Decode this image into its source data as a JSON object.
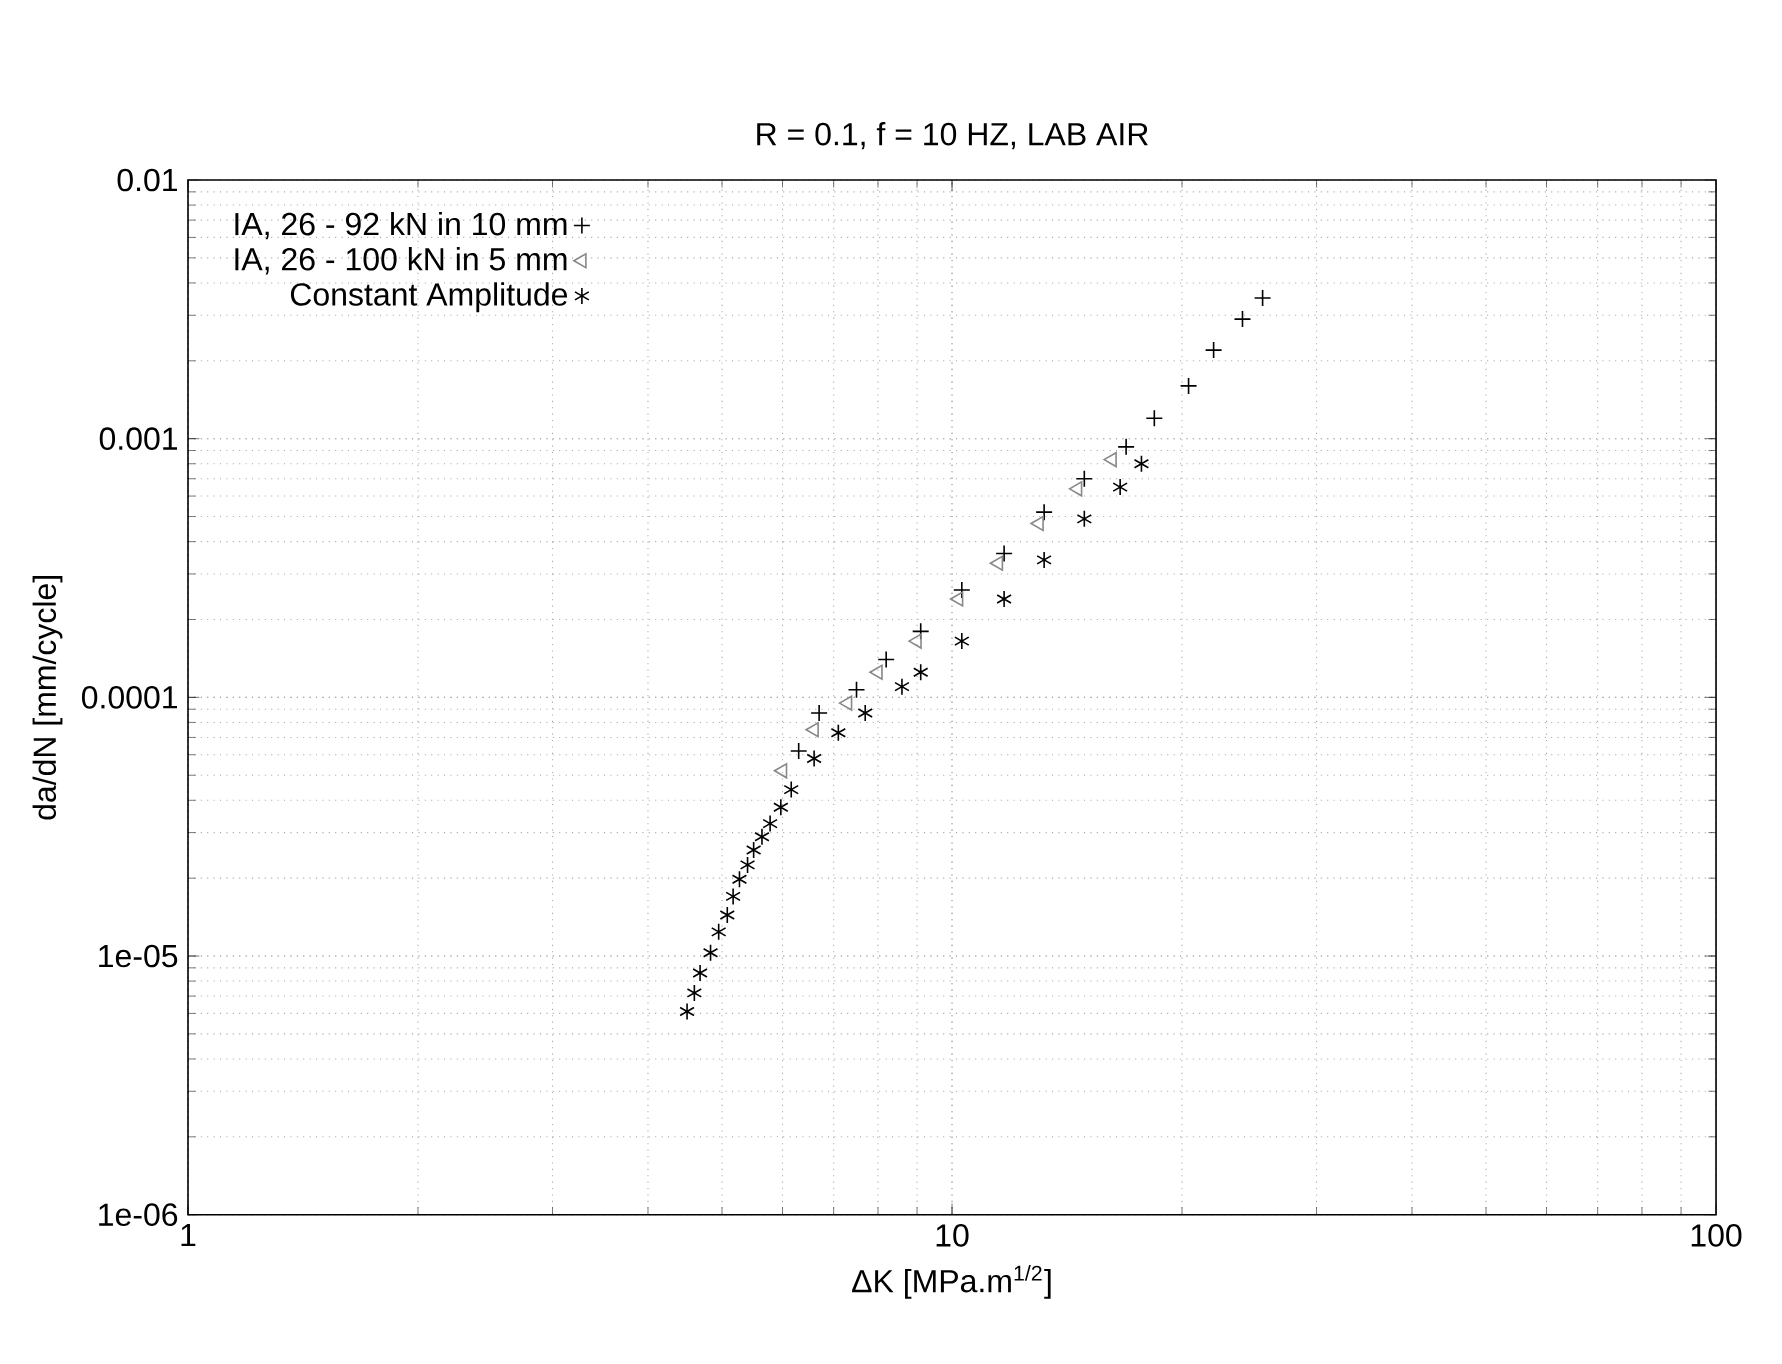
{
  "chart_data": {
    "type": "scatter",
    "title": "R = 0.1, f = 10 HZ, LAB AIR",
    "xlabel": "ΔK [MPa.m$^{1/2}$]",
    "ylabel": "da/dN [mm/cycle]",
    "log": "xy",
    "grid": true,
    "legend": "top left",
    "xlim": [
      1,
      100
    ],
    "xticks": [
      1,
      10,
      100
    ],
    "ylim": [
      1e-06,
      0.01
    ],
    "yticks": [
      {
        "value": 1e-06,
        "label": "1e-06"
      },
      {
        "value": 1e-05,
        "label": "1e-05"
      },
      {
        "value": 0.0001,
        "label": "0.0001"
      },
      0.001,
      0.01
    ],
    "series": [
      {
        "name": "IA, 26 - 92 kN in 10 mm",
        "color": "#000000",
        "marker": "cross",
        "x": [
          6.3,
          6.7,
          7.5,
          8.2,
          9.1,
          10.3,
          11.7,
          13.2,
          14.9,
          16.9,
          18.4,
          20.4,
          22,
          24,
          25.5
        ],
        "values": [
          6.2e-05,
          8.7e-05,
          0.000107,
          0.00014,
          0.00018,
          0.00026,
          0.00036,
          0.00052,
          0.0007,
          0.00093,
          0.0012,
          0.0016,
          0.0022,
          0.0029,
          0.0035
        ]
      },
      {
        "name": "IA, 26 - 100 kN in 5 mm",
        "color": "#888888",
        "marker": "triangle",
        "x": [
          6.0,
          6.6,
          7.3,
          8.0,
          9.0,
          10.2,
          11.5,
          13.0,
          14.6,
          16.2
        ],
        "values": [
          5.2e-05,
          7.5e-05,
          9.5e-05,
          0.000125,
          0.000165,
          0.00024,
          0.00033,
          0.00047,
          0.00064,
          0.00083
        ]
      },
      {
        "name": "Constant Amplitude",
        "color": "#000000",
        "x": [
          4.5,
          4.6,
          4.68,
          4.83,
          4.95,
          5.08,
          5.17,
          5.27,
          5.4,
          5.5,
          5.64,
          5.78,
          5.97,
          6.16,
          6.6,
          7.1,
          7.7,
          8.6,
          9.1,
          10.3,
          11.7,
          13.2,
          14.9,
          16.6,
          17.7
        ],
        "values": [
          6.1e-06,
          7.2e-06,
          8.6e-06,
          1.03e-05,
          1.24e-05,
          1.44e-05,
          1.7e-05,
          1.98e-05,
          2.25e-05,
          2.57e-05,
          2.89e-05,
          3.25e-05,
          3.76e-05,
          4.4e-05,
          5.8e-05,
          7.3e-05,
          8.7e-05,
          0.00011,
          0.000125,
          0.000165,
          0.00024,
          0.00034,
          0.00049,
          0.00065,
          0.0008
        ]
      }
    ]
  }
}
